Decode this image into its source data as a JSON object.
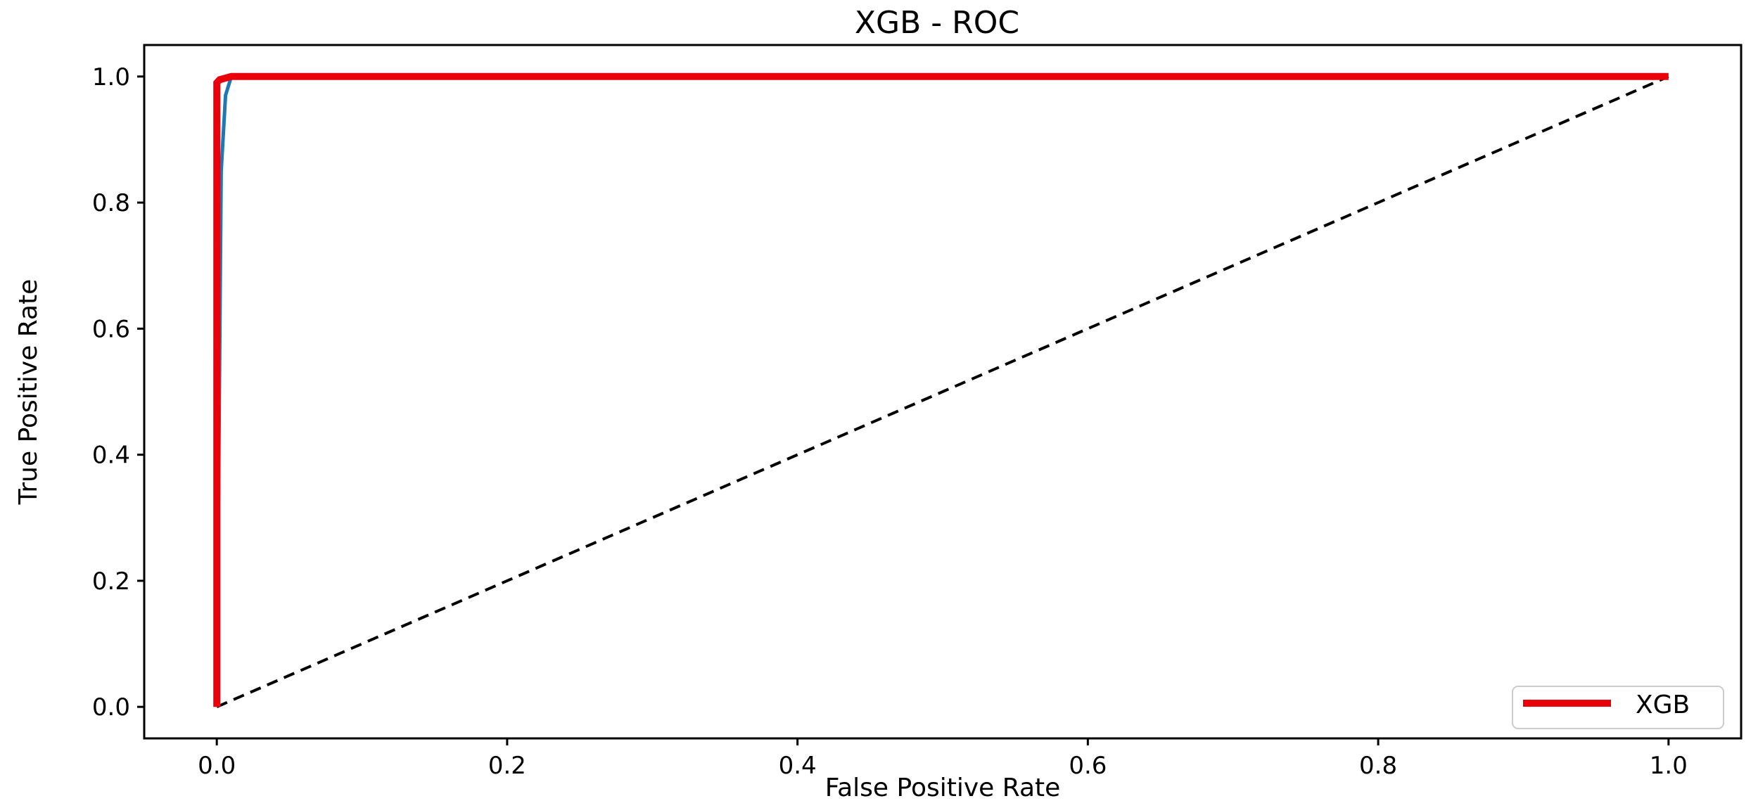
{
  "chart_data": {
    "type": "line",
    "title": "XGB - ROC",
    "xlabel": "False Positive Rate",
    "ylabel": "True Positive Rate",
    "xlim": [
      -0.05,
      1.05
    ],
    "ylim": [
      -0.05,
      1.05
    ],
    "xticks": [
      0.0,
      0.2,
      0.4,
      0.6,
      0.8,
      1.0
    ],
    "yticks": [
      0.0,
      0.2,
      0.4,
      0.6,
      0.8,
      1.0
    ],
    "xtick_labels": [
      "0.0",
      "0.2",
      "0.4",
      "0.6",
      "0.8",
      "1.0"
    ],
    "ytick_labels": [
      "0.0",
      "0.2",
      "0.4",
      "0.6",
      "0.8",
      "1.0"
    ],
    "grid": false,
    "legend_position": "lower-right",
    "series": [
      {
        "name": "XGB",
        "color": "#e8000b",
        "style": "solid",
        "x": [
          0.0,
          0.0,
          0.002,
          0.01,
          1.0
        ],
        "y": [
          0.0,
          0.99,
          0.995,
          1.0,
          1.0
        ]
      },
      {
        "name": "",
        "color": "#1f77b4",
        "style": "solid",
        "x": [
          0.0,
          0.003,
          0.006,
          0.01
        ],
        "y": [
          0.0,
          0.85,
          0.97,
          1.0
        ]
      },
      {
        "name": "",
        "color": "#000000",
        "style": "dashed",
        "x": [
          0.0,
          1.0
        ],
        "y": [
          0.0,
          1.0
        ]
      }
    ]
  }
}
